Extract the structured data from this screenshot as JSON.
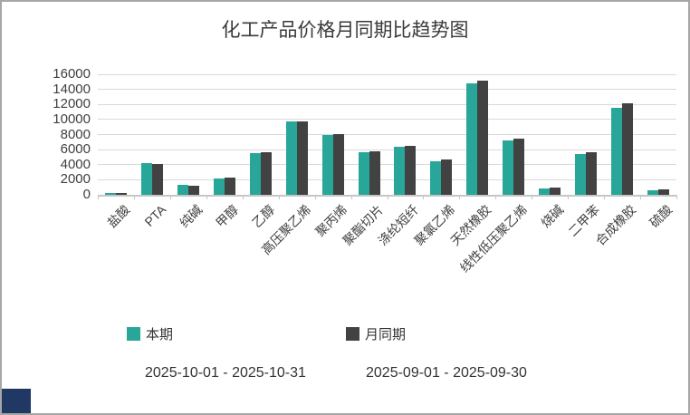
{
  "title": "化工产品价格月同期比趋势图",
  "colors": {
    "current": "#27a699",
    "month_prior": "#424242",
    "gridline": "#d9d9d9",
    "axis": "#c6c6c6",
    "border": "#a6a6a6",
    "corner_logo": "#1f3864",
    "text": "#404040"
  },
  "legend": [
    {
      "label": "本期",
      "color": "#27a699"
    },
    {
      "label": "月同期",
      "color": "#424242"
    }
  ],
  "footer": {
    "period_current": "2025-10-01 - 2025-10-31",
    "period_previous": "2025-09-01 - 2025-09-30"
  },
  "chart_data": {
    "type": "bar",
    "title": "化工产品价格月同期比趋势图",
    "xlabel": "",
    "ylabel": "",
    "ylim": [
      0,
      16000
    ],
    "yticks": [
      0,
      2000,
      4000,
      6000,
      8000,
      10000,
      12000,
      14000,
      16000
    ],
    "grid": true,
    "legend_position": "bottom",
    "categories": [
      "盐酸",
      "PTA",
      "纯碱",
      "甲醇",
      "乙醇",
      "高压聚乙烯",
      "聚丙烯",
      "聚酯切片",
      "涤纶短纤",
      "聚氯乙烯",
      "天然橡胶",
      "线性低压聚乙烯",
      "烧碱",
      "二甲苯",
      "合成橡胶",
      "硫酸"
    ],
    "series": [
      {
        "name": "本期",
        "color": "#27a699",
        "values": [
          250,
          4200,
          1300,
          2200,
          5500,
          9700,
          7900,
          5700,
          6400,
          4500,
          14800,
          7200,
          900,
          5400,
          11600,
          650
        ]
      },
      {
        "name": "月同期",
        "color": "#424242",
        "values": [
          200,
          4150,
          1250,
          2300,
          5600,
          9800,
          8050,
          5800,
          6550,
          4700,
          15200,
          7500,
          1000,
          5650,
          12100,
          750
        ]
      }
    ]
  }
}
